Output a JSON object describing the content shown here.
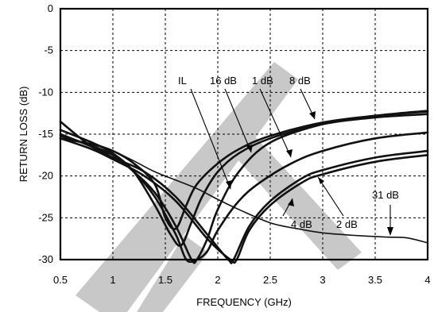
{
  "chart_data": {
    "type": "line",
    "xlabel": "FREQUENCY (GHz)",
    "ylabel": "RETURN LOSS (dB)",
    "xlim": [
      0.5,
      4
    ],
    "ylim": [
      -30,
      0
    ],
    "xticks": [
      "0.5",
      "1",
      "1.5",
      "2",
      "2.5",
      "3",
      "3.5",
      "4"
    ],
    "yticks": [
      "0",
      "-5",
      "-10",
      "-15",
      "-20",
      "-25",
      "-30"
    ],
    "grid": true,
    "annotations": [
      "IL",
      "16 dB",
      "1 dB",
      "8 dB",
      "4 dB",
      "2 dB",
      "31 dB"
    ],
    "series": [
      {
        "name": "IL",
        "x": [
          0.5,
          0.8,
          1.0,
          1.2,
          1.4,
          1.5,
          1.6,
          1.7,
          1.8,
          2.0,
          2.2,
          2.5,
          3.0,
          3.5,
          4.0
        ],
        "y": [
          -15.5,
          -16.2,
          -17.0,
          -18.5,
          -21.0,
          -25.0,
          -26.3,
          -23.5,
          -21.0,
          -18.5,
          -16.8,
          -15.2,
          -13.6,
          -12.8,
          -12.3
        ]
      },
      {
        "name": "16 dB",
        "x": [
          0.5,
          0.8,
          1.0,
          1.2,
          1.4,
          1.55,
          1.65,
          1.75,
          1.85,
          2.0,
          2.2,
          2.5,
          3.0,
          3.5,
          4.0
        ],
        "y": [
          -14.5,
          -16.0,
          -17.3,
          -19.5,
          -23.5,
          -27.0,
          -28.3,
          -25.5,
          -22.5,
          -19.5,
          -17.3,
          -15.5,
          -13.8,
          -13.0,
          -12.6
        ]
      },
      {
        "name": "1 dB",
        "x": [
          0.5,
          0.8,
          1.0,
          1.2,
          1.4,
          1.6,
          1.7,
          1.8,
          1.9,
          2.0,
          2.2,
          2.4,
          2.7,
          3.0,
          3.5,
          4.0
        ],
        "y": [
          -13.5,
          -16.5,
          -17.5,
          -19.5,
          -22.5,
          -27.0,
          -30.0,
          -30.0,
          -29.0,
          -26.5,
          -23.0,
          -20.8,
          -18.5,
          -17.0,
          -15.5,
          -14.8
        ]
      },
      {
        "name": "8 dB",
        "x": [
          0.5,
          0.8,
          1.0,
          1.2,
          1.4,
          1.6,
          1.75,
          1.8,
          1.9,
          2.0,
          2.2,
          2.5,
          3.0,
          3.5,
          4.0
        ],
        "y": [
          -15.2,
          -16.4,
          -17.5,
          -19.5,
          -22.0,
          -26.0,
          -30.0,
          -30.0,
          -27.5,
          -24.0,
          -19.5,
          -16.0,
          -13.8,
          -12.8,
          -12.2
        ]
      },
      {
        "name": "4 dB",
        "x": [
          0.5,
          0.8,
          1.0,
          1.3,
          1.6,
          1.9,
          2.1,
          2.15,
          2.3,
          2.5,
          2.8,
          3.0,
          3.5,
          4.0
        ],
        "y": [
          -15.0,
          -16.5,
          -17.8,
          -19.5,
          -22.5,
          -27.0,
          -30.0,
          -30.0,
          -26.0,
          -23.0,
          -20.3,
          -19.3,
          -17.8,
          -17.0
        ]
      },
      {
        "name": "2 dB",
        "x": [
          0.5,
          0.8,
          1.0,
          1.3,
          1.6,
          1.9,
          2.12,
          2.18,
          2.3,
          2.5,
          2.8,
          3.0,
          3.5,
          4.0
        ],
        "y": [
          -15.5,
          -16.8,
          -18.0,
          -20.0,
          -23.0,
          -27.5,
          -30.0,
          -30.0,
          -26.5,
          -23.5,
          -20.8,
          -19.8,
          -18.3,
          -17.5
        ]
      },
      {
        "name": "31 dB",
        "x": [
          0.5,
          0.8,
          1.0,
          1.2,
          1.4,
          1.6,
          1.8,
          2.0,
          2.2,
          2.5,
          2.8,
          3.0,
          3.3,
          3.6,
          3.8,
          4.0
        ],
        "y": [
          -14.5,
          -16.0,
          -17.0,
          -18.2,
          -19.5,
          -20.5,
          -21.5,
          -22.8,
          -24.0,
          -25.6,
          -26.4,
          -26.8,
          -27.1,
          -27.3,
          -27.4,
          -28.0
        ]
      }
    ]
  }
}
